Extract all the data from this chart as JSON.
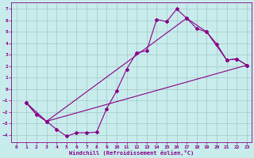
{
  "bg_color": "#c8ecec",
  "line_color": "#880088",
  "grid_color": "#b0d0d0",
  "xlim": [
    -0.5,
    23.5
  ],
  "ylim": [
    -4.6,
    7.6
  ],
  "yticks": [
    -4,
    -3,
    -2,
    -1,
    0,
    1,
    2,
    3,
    4,
    5,
    6,
    7
  ],
  "xticks": [
    0,
    1,
    2,
    3,
    4,
    5,
    6,
    7,
    8,
    9,
    10,
    11,
    12,
    13,
    14,
    15,
    16,
    17,
    18,
    19,
    20,
    21,
    22,
    23
  ],
  "xlabel": "Windchill (Refroidissement éolien,°C)",
  "line1_x": [
    1,
    2,
    3,
    4,
    5,
    6,
    7,
    8,
    9,
    10,
    11,
    12,
    13,
    14,
    15,
    16,
    17,
    18,
    19,
    20,
    21,
    22,
    23
  ],
  "line1_y": [
    -1.2,
    -2.2,
    -2.8,
    -3.5,
    -4.1,
    -3.8,
    -3.8,
    -3.75,
    -1.7,
    -0.15,
    1.75,
    3.2,
    3.35,
    6.1,
    5.9,
    7.0,
    6.2,
    5.3,
    5.0,
    3.95,
    2.55,
    2.65,
    2.1
  ],
  "line2_x": [
    1,
    2,
    3,
    23
  ],
  "line2_y": [
    -1.2,
    -2.2,
    -2.8,
    2.1
  ],
  "line3_x": [
    1,
    3,
    17,
    19,
    21,
    22,
    23
  ],
  "line3_y": [
    -1.2,
    -2.8,
    6.2,
    5.0,
    2.55,
    2.65,
    2.1
  ]
}
